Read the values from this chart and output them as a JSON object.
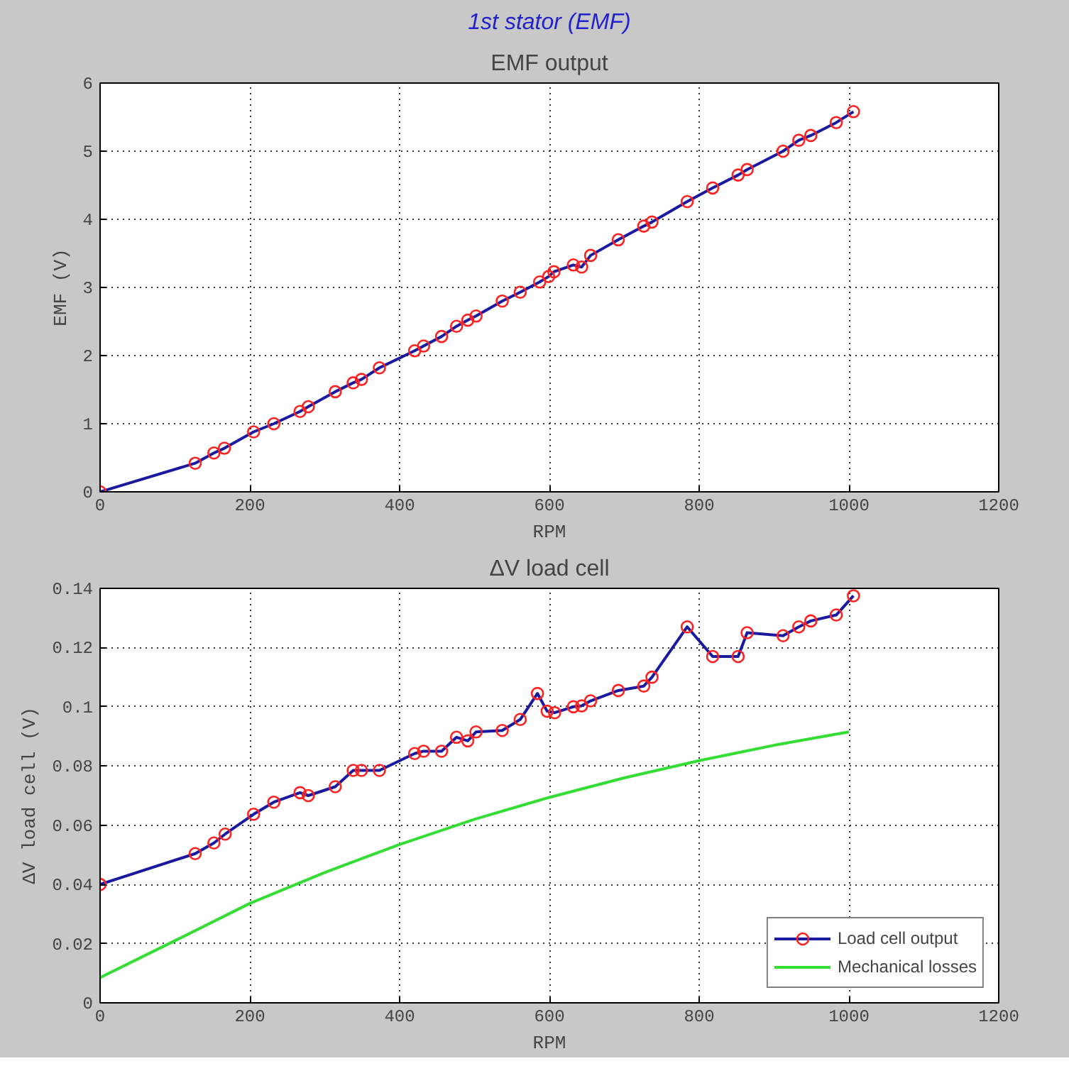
{
  "chart_data": [
    {
      "type": "line",
      "title": "EMF output",
      "annotations": [
        "1st stator (EMF)"
      ],
      "xlabel": "RPM",
      "ylabel": "EMF (V)",
      "xlim": [
        0,
        1200
      ],
      "ylim": [
        0,
        6
      ],
      "xticks": [
        0,
        200,
        400,
        600,
        800,
        1000,
        1200
      ],
      "yticks": [
        0,
        1,
        2,
        3,
        4,
        5,
        6
      ],
      "grid": true,
      "marker": "circle",
      "legend": false,
      "x": [
        0,
        127,
        152,
        166,
        205,
        232,
        267,
        278,
        314,
        338,
        349,
        373,
        420,
        432,
        456,
        476,
        491,
        502,
        537,
        561,
        587,
        599,
        606,
        632,
        643,
        655,
        692,
        726,
        737,
        784,
        818,
        852,
        864,
        912,
        933,
        949,
        983,
        1006
      ],
      "series": [
        {
          "color": "#1a1aa0",
          "values": [
            0,
            0.42,
            0.57,
            0.64,
            0.88,
            1.0,
            1.18,
            1.25,
            1.47,
            1.6,
            1.65,
            1.82,
            2.07,
            2.14,
            2.28,
            2.43,
            2.52,
            2.58,
            2.8,
            2.93,
            3.08,
            3.16,
            3.23,
            3.33,
            3.3,
            3.47,
            3.7,
            3.9,
            3.96,
            4.26,
            4.46,
            4.65,
            4.73,
            5.0,
            5.16,
            5.23,
            5.42,
            5.58
          ]
        }
      ]
    },
    {
      "type": "line",
      "title": "ΔV load cell",
      "xlabel": "RPM",
      "ylabel": "ΔV load cell (V)",
      "xlim": [
        0,
        1200
      ],
      "ylim": [
        0,
        0.14
      ],
      "xticks": [
        0,
        200,
        400,
        600,
        800,
        1000,
        1200
      ],
      "yticks": [
        0,
        0.02,
        0.04,
        0.06,
        0.08,
        0.1,
        0.12,
        0.14
      ],
      "grid": true,
      "legend": "bottom right",
      "series": [
        {
          "name": "Load cell output",
          "color": "#1a1aa0",
          "marker": "circle",
          "x": [
            0,
            127,
            152,
            167,
            205,
            232,
            267,
            278,
            314,
            338,
            349,
            373,
            420,
            432,
            456,
            476,
            491,
            502,
            537,
            561,
            584,
            597,
            607,
            632,
            643,
            655,
            692,
            726,
            737,
            784,
            818,
            852,
            864,
            912,
            933,
            949,
            983,
            1006
          ],
          "values": [
            0.04,
            0.0504,
            0.054,
            0.057,
            0.0637,
            0.0678,
            0.071,
            0.07,
            0.073,
            0.0785,
            0.0785,
            0.0785,
            0.0842,
            0.085,
            0.085,
            0.0897,
            0.0885,
            0.0915,
            0.092,
            0.0957,
            0.1045,
            0.0985,
            0.098,
            0.1,
            0.1003,
            0.102,
            0.1055,
            0.107,
            0.11,
            0.127,
            0.117,
            0.117,
            0.125,
            0.124,
            0.127,
            0.129,
            0.131,
            0.1375
          ]
        },
        {
          "name": "Mechanical losses",
          "color": "#33dd33",
          "marker": "none",
          "x": [
            0,
            100,
            200,
            300,
            400,
            500,
            600,
            700,
            800,
            900,
            1000
          ],
          "values": [
            0.0085,
            0.021,
            0.0336,
            0.044,
            0.0535,
            0.062,
            0.0694,
            0.076,
            0.0818,
            0.087,
            0.0915
          ]
        }
      ]
    }
  ]
}
